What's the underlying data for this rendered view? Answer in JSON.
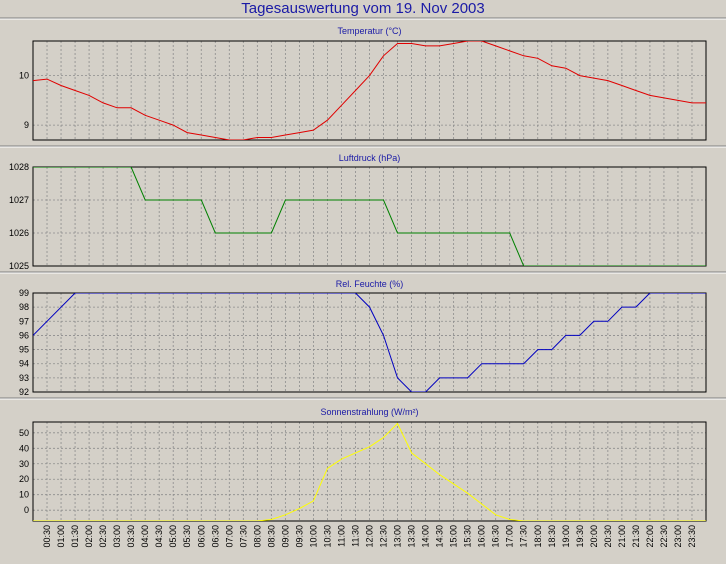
{
  "title": "Tagesauswertung vom 19. Nov 2003",
  "time_labels": [
    "00:30",
    "01:00",
    "01:30",
    "02:00",
    "02:30",
    "03:00",
    "03:30",
    "04:00",
    "04:30",
    "05:00",
    "05:30",
    "06:00",
    "06:30",
    "07:00",
    "07:30",
    "08:00",
    "08:30",
    "09:00",
    "09:30",
    "10:00",
    "10:30",
    "11:00",
    "11:30",
    "12:00",
    "12:30",
    "13:00",
    "13:30",
    "14:00",
    "14:30",
    "15:00",
    "15:30",
    "16:00",
    "16:30",
    "17:00",
    "17:30",
    "18:00",
    "18:30",
    "19:00",
    "19:30",
    "20:00",
    "20:30",
    "21:00",
    "21:30",
    "22:00",
    "22:30",
    "23:00",
    "23:30"
  ],
  "chart_data": [
    {
      "type": "line",
      "title": "Temperatur (°C)",
      "color": "#e00000",
      "ylim": [
        8.7,
        10.7
      ],
      "yticks": [
        9,
        10
      ],
      "x": [
        "00:00",
        "00:30",
        "01:00",
        "01:30",
        "02:00",
        "02:30",
        "03:00",
        "03:30",
        "04:00",
        "04:30",
        "05:00",
        "05:30",
        "06:00",
        "06:30",
        "07:00",
        "07:30",
        "08:00",
        "08:30",
        "09:00",
        "09:30",
        "10:00",
        "10:30",
        "11:00",
        "11:30",
        "12:00",
        "12:30",
        "13:00",
        "13:30",
        "14:00",
        "14:30",
        "15:00",
        "15:30",
        "16:00",
        "16:30",
        "17:00",
        "17:30",
        "18:00",
        "18:30",
        "19:00",
        "19:30",
        "20:00",
        "20:30",
        "21:00",
        "21:30",
        "22:00",
        "22:30",
        "23:00",
        "23:30",
        "24:00"
      ],
      "values": [
        9.9,
        9.93,
        9.8,
        9.7,
        9.6,
        9.45,
        9.35,
        9.35,
        9.2,
        9.1,
        9.0,
        8.85,
        8.8,
        8.75,
        8.7,
        8.7,
        8.75,
        8.75,
        8.8,
        8.85,
        8.9,
        9.1,
        9.4,
        9.7,
        10.0,
        10.4,
        10.65,
        10.65,
        10.6,
        10.6,
        10.65,
        10.7,
        10.7,
        10.6,
        10.5,
        10.4,
        10.35,
        10.2,
        10.15,
        10.0,
        9.95,
        9.9,
        9.8,
        9.7,
        9.6,
        9.55,
        9.5,
        9.45,
        9.45
      ]
    },
    {
      "type": "line",
      "title": "Luftdruck (hPa)",
      "color": "#008000",
      "ylim": [
        1025,
        1028
      ],
      "yticks": [
        1025,
        1026,
        1027,
        1028
      ],
      "x": [
        "00:00",
        "03:30",
        "04:00",
        "06:00",
        "06:30",
        "08:30",
        "09:00",
        "12:30",
        "13:00",
        "17:00",
        "17:30",
        "24:00"
      ],
      "values": [
        1028,
        1028,
        1027,
        1027,
        1026,
        1026,
        1027,
        1027,
        1026,
        1026,
        1025,
        1025
      ]
    },
    {
      "type": "line",
      "title": "Rel. Feuchte (%)",
      "color": "#0000c0",
      "ylim": [
        92,
        99
      ],
      "yticks": [
        92,
        93,
        94,
        95,
        96,
        97,
        98,
        99
      ],
      "x": [
        "00:00",
        "01:30",
        "11:30",
        "12:00",
        "12:30",
        "13:00",
        "13:30",
        "14:00",
        "14:30",
        "15:30",
        "16:00",
        "17:30",
        "18:00",
        "18:30",
        "19:00",
        "19:30",
        "20:00",
        "20:30",
        "21:00",
        "21:30",
        "22:00",
        "22:30",
        "24:00"
      ],
      "values": [
        96,
        99,
        99,
        98,
        96,
        93,
        92,
        92,
        93,
        93,
        94,
        94,
        95,
        95,
        96,
        96,
        97,
        97,
        98,
        98,
        99,
        99,
        99
      ]
    },
    {
      "type": "line",
      "title": "Sonnenstrahlung (W/m²)",
      "color": "#ffff00",
      "ylim": [
        -7,
        57
      ],
      "yticks": [
        0,
        10,
        20,
        30,
        40,
        50
      ],
      "x": [
        "00:00",
        "01:30",
        "02:00",
        "06:00",
        "08:00",
        "08:30",
        "09:00",
        "09:30",
        "10:00",
        "10:30",
        "11:00",
        "11:30",
        "12:00",
        "12:30",
        "13:00",
        "13:30",
        "14:00",
        "14:30",
        "15:00",
        "15:30",
        "16:00",
        "16:30",
        "17:00",
        "17:30",
        "24:00"
      ],
      "values": [
        -7,
        -7,
        -7,
        -7,
        -7,
        -6,
        -3,
        1,
        6,
        27,
        33,
        37,
        41,
        47,
        56,
        37,
        30,
        23,
        17,
        11,
        4,
        -3,
        -6,
        -7,
        -7
      ]
    }
  ]
}
